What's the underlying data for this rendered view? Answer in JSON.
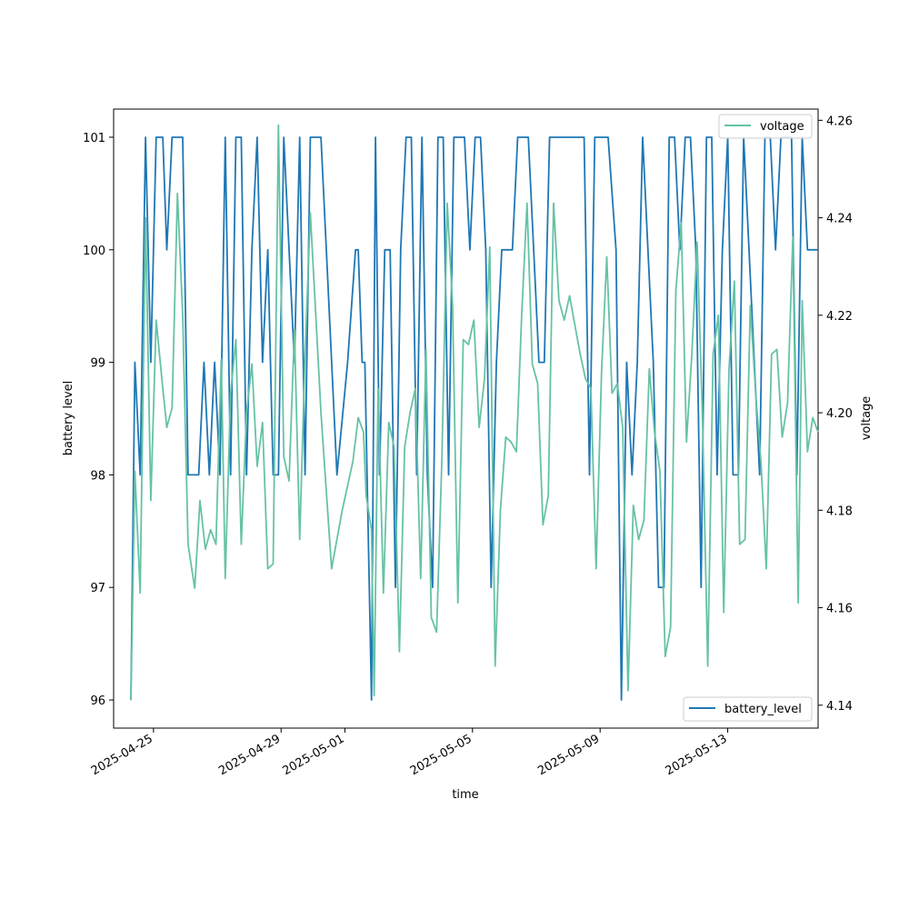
{
  "chart_data": {
    "type": "line",
    "title": "",
    "xlabel": "time",
    "ylabel_left": "battery level",
    "ylabel_right": "voltage",
    "x_ticks": [
      "2025-04-25",
      "2025-04-29",
      "2025-05-01",
      "2025-05-05",
      "2025-05-09",
      "2025-05-13"
    ],
    "y_left_ticks": [
      96,
      97,
      98,
      99,
      100,
      101
    ],
    "y_right_ticks": [
      "4.14",
      "4.16",
      "4.18",
      "4.20",
      "4.22",
      "4.24",
      "4.26"
    ],
    "x_range": [
      "2025-04-23T18:00",
      "2025-05-15T20:00"
    ],
    "y_left_range": [
      95.75,
      101.25
    ],
    "y_right_range": [
      4.1353,
      4.2623
    ],
    "legend": {
      "voltage_position": "upper right",
      "battery_position": "lower right"
    },
    "colors": {
      "battery_level": "#1f77b4",
      "voltage": "#66c2a5"
    },
    "series": [
      {
        "name": "battery_level",
        "axis": "left",
        "points": [
          [
            "2025-04-24T07:00",
            96
          ],
          [
            "2025-04-24T10:00",
            99
          ],
          [
            "2025-04-24T14:00",
            98
          ],
          [
            "2025-04-24T18:00",
            101
          ],
          [
            "2025-04-24T22:00",
            99
          ],
          [
            "2025-04-25T02:00",
            101
          ],
          [
            "2025-04-25T07:00",
            101
          ],
          [
            "2025-04-25T10:00",
            100
          ],
          [
            "2025-04-25T14:00",
            101
          ],
          [
            "2025-04-25T22:00",
            101
          ],
          [
            "2025-04-26T02:00",
            98
          ],
          [
            "2025-04-26T10:00",
            98
          ],
          [
            "2025-04-26T14:00",
            99
          ],
          [
            "2025-04-26T18:00",
            98
          ],
          [
            "2025-04-26T22:00",
            99
          ],
          [
            "2025-04-27T02:00",
            98
          ],
          [
            "2025-04-27T06:00",
            101
          ],
          [
            "2025-04-27T10:00",
            98
          ],
          [
            "2025-04-27T14:00",
            101
          ],
          [
            "2025-04-27T18:00",
            101
          ],
          [
            "2025-04-27T22:00",
            98
          ],
          [
            "2025-04-28T02:00",
            100
          ],
          [
            "2025-04-28T06:00",
            101
          ],
          [
            "2025-04-28T10:00",
            99
          ],
          [
            "2025-04-28T14:00",
            100
          ],
          [
            "2025-04-28T18:00",
            98
          ],
          [
            "2025-04-28T22:00",
            98
          ],
          [
            "2025-04-29T02:00",
            101
          ],
          [
            "2025-04-29T06:00",
            100
          ],
          [
            "2025-04-29T10:00",
            99
          ],
          [
            "2025-04-29T14:00",
            101
          ],
          [
            "2025-04-29T18:00",
            98
          ],
          [
            "2025-04-29T22:00",
            101
          ],
          [
            "2025-04-30T06:00",
            101
          ],
          [
            "2025-04-30T10:00",
            100
          ],
          [
            "2025-04-30T18:00",
            98
          ],
          [
            "2025-05-01T02:00",
            99
          ],
          [
            "2025-05-01T08:00",
            100
          ],
          [
            "2025-05-01T10:00",
            100
          ],
          [
            "2025-05-01T13:00",
            99
          ],
          [
            "2025-05-01T15:00",
            99
          ],
          [
            "2025-05-01T20:00",
            96
          ],
          [
            "2025-05-01T23:00",
            101
          ],
          [
            "2025-05-02T02:00",
            98
          ],
          [
            "2025-05-02T06:00",
            100
          ],
          [
            "2025-05-02T10:00",
            100
          ],
          [
            "2025-05-02T14:00",
            97
          ],
          [
            "2025-05-02T18:00",
            100
          ],
          [
            "2025-05-02T22:00",
            101
          ],
          [
            "2025-05-03T02:00",
            101
          ],
          [
            "2025-05-03T06:00",
            98
          ],
          [
            "2025-05-03T10:00",
            101
          ],
          [
            "2025-05-03T14:00",
            98
          ],
          [
            "2025-05-03T18:00",
            97
          ],
          [
            "2025-05-03T22:00",
            101
          ],
          [
            "2025-05-04T02:00",
            101
          ],
          [
            "2025-05-04T06:00",
            98
          ],
          [
            "2025-05-04T10:00",
            101
          ],
          [
            "2025-05-04T14:00",
            101
          ],
          [
            "2025-05-04T18:00",
            101
          ],
          [
            "2025-05-04T22:00",
            100
          ],
          [
            "2025-05-05T02:00",
            101
          ],
          [
            "2025-05-05T06:00",
            101
          ],
          [
            "2025-05-05T10:00",
            100
          ],
          [
            "2025-05-05T14:00",
            97
          ],
          [
            "2025-05-05T18:00",
            99
          ],
          [
            "2025-05-05T22:00",
            100
          ],
          [
            "2025-05-06T02:00",
            100
          ],
          [
            "2025-05-06T06:00",
            100
          ],
          [
            "2025-05-06T10:00",
            101
          ],
          [
            "2025-05-06T14:00",
            101
          ],
          [
            "2025-05-06T18:00",
            101
          ],
          [
            "2025-05-06T22:00",
            100
          ],
          [
            "2025-05-07T02:00",
            99
          ],
          [
            "2025-05-07T06:00",
            99
          ],
          [
            "2025-05-07T10:00",
            101
          ],
          [
            "2025-05-07T14:00",
            101
          ],
          [
            "2025-05-07T22:00",
            101
          ],
          [
            "2025-05-08T06:00",
            101
          ],
          [
            "2025-05-08T12:00",
            101
          ],
          [
            "2025-05-08T16:00",
            98
          ],
          [
            "2025-05-08T20:00",
            101
          ],
          [
            "2025-05-09T02:00",
            101
          ],
          [
            "2025-05-09T06:00",
            101
          ],
          [
            "2025-05-09T12:00",
            100
          ],
          [
            "2025-05-09T16:00",
            96
          ],
          [
            "2025-05-09T20:00",
            99
          ],
          [
            "2025-05-10T00:00",
            98
          ],
          [
            "2025-05-10T04:00",
            99
          ],
          [
            "2025-05-10T08:00",
            101
          ],
          [
            "2025-05-10T12:00",
            100
          ],
          [
            "2025-05-10T16:00",
            99
          ],
          [
            "2025-05-10T20:00",
            97
          ],
          [
            "2025-05-11T00:00",
            97
          ],
          [
            "2025-05-11T04:00",
            101
          ],
          [
            "2025-05-11T08:00",
            101
          ],
          [
            "2025-05-11T12:00",
            100
          ],
          [
            "2025-05-11T16:00",
            101
          ],
          [
            "2025-05-11T20:00",
            101
          ],
          [
            "2025-05-12T00:00",
            100
          ],
          [
            "2025-05-12T04:00",
            97
          ],
          [
            "2025-05-12T08:00",
            101
          ],
          [
            "2025-05-12T12:00",
            101
          ],
          [
            "2025-05-12T16:00",
            98
          ],
          [
            "2025-05-12T20:00",
            100
          ],
          [
            "2025-05-13T00:00",
            101
          ],
          [
            "2025-05-13T04:00",
            98
          ],
          [
            "2025-05-13T08:00",
            98
          ],
          [
            "2025-05-13T12:00",
            101
          ],
          [
            "2025-05-13T16:00",
            100
          ],
          [
            "2025-05-13T20:00",
            99
          ],
          [
            "2025-05-14T00:00",
            98
          ],
          [
            "2025-05-14T04:00",
            101
          ],
          [
            "2025-05-14T08:00",
            101
          ],
          [
            "2025-05-14T12:00",
            100
          ],
          [
            "2025-05-14T16:00",
            101
          ],
          [
            "2025-05-14T20:00",
            101
          ],
          [
            "2025-05-15T00:00",
            101
          ],
          [
            "2025-05-15T04:00",
            98
          ],
          [
            "2025-05-15T08:00",
            101
          ],
          [
            "2025-05-15T12:00",
            100
          ],
          [
            "2025-05-15T20:00",
            100
          ]
        ]
      },
      {
        "name": "voltage",
        "axis": "right",
        "points": [
          [
            "2025-04-24T07:00",
            4.141
          ],
          [
            "2025-04-24T10:00",
            4.188
          ],
          [
            "2025-04-24T14:00",
            4.163
          ],
          [
            "2025-04-24T18:00",
            4.24
          ],
          [
            "2025-04-24T22:00",
            4.182
          ],
          [
            "2025-04-25T02:00",
            4.219
          ],
          [
            "2025-04-25T07:00",
            4.205
          ],
          [
            "2025-04-25T10:00",
            4.197
          ],
          [
            "2025-04-25T14:00",
            4.201
          ],
          [
            "2025-04-25T18:00",
            4.245
          ],
          [
            "2025-04-25T22:00",
            4.22
          ],
          [
            "2025-04-26T02:00",
            4.173
          ],
          [
            "2025-04-26T07:00",
            4.164
          ],
          [
            "2025-04-26T11:00",
            4.182
          ],
          [
            "2025-04-26T15:00",
            4.172
          ],
          [
            "2025-04-26T19:00",
            4.176
          ],
          [
            "2025-04-26T23:00",
            4.173
          ],
          [
            "2025-04-27T03:00",
            4.211
          ],
          [
            "2025-04-27T06:00",
            4.166
          ],
          [
            "2025-04-27T10:00",
            4.204
          ],
          [
            "2025-04-27T14:00",
            4.215
          ],
          [
            "2025-04-27T18:00",
            4.173
          ],
          [
            "2025-04-27T22:00",
            4.2
          ],
          [
            "2025-04-28T02:00",
            4.21
          ],
          [
            "2025-04-28T06:00",
            4.189
          ],
          [
            "2025-04-28T10:00",
            4.198
          ],
          [
            "2025-04-28T14:00",
            4.168
          ],
          [
            "2025-04-28T18:00",
            4.169
          ],
          [
            "2025-04-28T22:00",
            4.259
          ],
          [
            "2025-04-29T02:00",
            4.191
          ],
          [
            "2025-04-29T06:00",
            4.186
          ],
          [
            "2025-04-29T10:00",
            4.217
          ],
          [
            "2025-04-29T14:00",
            4.174
          ],
          [
            "2025-04-29T18:00",
            4.212
          ],
          [
            "2025-04-29T22:00",
            4.241
          ],
          [
            "2025-04-30T06:00",
            4.2
          ],
          [
            "2025-04-30T14:00",
            4.168
          ],
          [
            "2025-04-30T22:00",
            4.18
          ],
          [
            "2025-05-01T06:00",
            4.19
          ],
          [
            "2025-05-01T10:00",
            4.199
          ],
          [
            "2025-05-01T14:00",
            4.196
          ],
          [
            "2025-05-01T16:00",
            4.183
          ],
          [
            "2025-05-01T20:00",
            4.176
          ],
          [
            "2025-05-01T22:00",
            4.142
          ],
          [
            "2025-05-02T01:00",
            4.205
          ],
          [
            "2025-05-02T05:00",
            4.163
          ],
          [
            "2025-05-02T09:00",
            4.198
          ],
          [
            "2025-05-02T13:00",
            4.193
          ],
          [
            "2025-05-02T17:00",
            4.151
          ],
          [
            "2025-05-02T21:00",
            4.193
          ],
          [
            "2025-05-03T01:00",
            4.2
          ],
          [
            "2025-05-03T05:00",
            4.205
          ],
          [
            "2025-05-03T09:00",
            4.166
          ],
          [
            "2025-05-03T13:00",
            4.213
          ],
          [
            "2025-05-03T17:00",
            4.158
          ],
          [
            "2025-05-03T21:00",
            4.155
          ],
          [
            "2025-05-04T01:00",
            4.191
          ],
          [
            "2025-05-04T05:00",
            4.243
          ],
          [
            "2025-05-04T09:00",
            4.222
          ],
          [
            "2025-05-04T13:00",
            4.161
          ],
          [
            "2025-05-04T17:00",
            4.215
          ],
          [
            "2025-05-04T21:00",
            4.214
          ],
          [
            "2025-05-05T01:00",
            4.219
          ],
          [
            "2025-05-05T05:00",
            4.197
          ],
          [
            "2025-05-05T09:00",
            4.207
          ],
          [
            "2025-05-05T13:00",
            4.234
          ],
          [
            "2025-05-05T17:00",
            4.148
          ],
          [
            "2025-05-05T21:00",
            4.18
          ],
          [
            "2025-05-06T01:00",
            4.195
          ],
          [
            "2025-05-06T05:00",
            4.194
          ],
          [
            "2025-05-06T09:00",
            4.192
          ],
          [
            "2025-05-06T13:00",
            4.22
          ],
          [
            "2025-05-06T17:00",
            4.243
          ],
          [
            "2025-05-06T21:00",
            4.21
          ],
          [
            "2025-05-07T01:00",
            4.206
          ],
          [
            "2025-05-07T05:00",
            4.177
          ],
          [
            "2025-05-07T09:00",
            4.183
          ],
          [
            "2025-05-07T13:00",
            4.243
          ],
          [
            "2025-05-07T17:00",
            4.223
          ],
          [
            "2025-05-07T21:00",
            4.219
          ],
          [
            "2025-05-08T01:00",
            4.224
          ],
          [
            "2025-05-08T05:00",
            4.218
          ],
          [
            "2025-05-08T09:00",
            4.212
          ],
          [
            "2025-05-08T13:00",
            4.207
          ],
          [
            "2025-05-08T17:00",
            4.205
          ],
          [
            "2025-05-08T21:00",
            4.168
          ],
          [
            "2025-05-09T01:00",
            4.208
          ],
          [
            "2025-05-09T05:00",
            4.232
          ],
          [
            "2025-05-09T09:00",
            4.204
          ],
          [
            "2025-05-09T13:00",
            4.206
          ],
          [
            "2025-05-09T17:00",
            4.197
          ],
          [
            "2025-05-09T21:00",
            4.143
          ],
          [
            "2025-05-10T01:00",
            4.181
          ],
          [
            "2025-05-10T05:00",
            4.174
          ],
          [
            "2025-05-10T09:00",
            4.178
          ],
          [
            "2025-05-10T13:00",
            4.209
          ],
          [
            "2025-05-10T17:00",
            4.196
          ],
          [
            "2025-05-10T21:00",
            4.188
          ],
          [
            "2025-05-11T01:00",
            4.15
          ],
          [
            "2025-05-11T05:00",
            4.156
          ],
          [
            "2025-05-11T09:00",
            4.225
          ],
          [
            "2025-05-11T13:00",
            4.239
          ],
          [
            "2025-05-11T17:00",
            4.194
          ],
          [
            "2025-05-11T21:00",
            4.212
          ],
          [
            "2025-05-12T01:00",
            4.235
          ],
          [
            "2025-05-12T05:00",
            4.199
          ],
          [
            "2025-05-12T09:00",
            4.148
          ],
          [
            "2025-05-12T13:00",
            4.212
          ],
          [
            "2025-05-12T17:00",
            4.22
          ],
          [
            "2025-05-12T21:00",
            4.159
          ],
          [
            "2025-05-13T01:00",
            4.209
          ],
          [
            "2025-05-13T05:00",
            4.227
          ],
          [
            "2025-05-13T09:00",
            4.173
          ],
          [
            "2025-05-13T13:00",
            4.174
          ],
          [
            "2025-05-13T17:00",
            4.222
          ],
          [
            "2025-05-13T21:00",
            4.204
          ],
          [
            "2025-05-14T01:00",
            4.19
          ],
          [
            "2025-05-14T05:00",
            4.168
          ],
          [
            "2025-05-14T09:00",
            4.212
          ],
          [
            "2025-05-14T13:00",
            4.213
          ],
          [
            "2025-05-14T17:00",
            4.195
          ],
          [
            "2025-05-14T21:00",
            4.202
          ],
          [
            "2025-05-15T01:00",
            4.236
          ],
          [
            "2025-05-15T05:00",
            4.161
          ],
          [
            "2025-05-15T08:00",
            4.223
          ],
          [
            "2025-05-15T12:00",
            4.192
          ],
          [
            "2025-05-15T16:00",
            4.199
          ],
          [
            "2025-05-15T20:00",
            4.196
          ]
        ]
      }
    ]
  }
}
